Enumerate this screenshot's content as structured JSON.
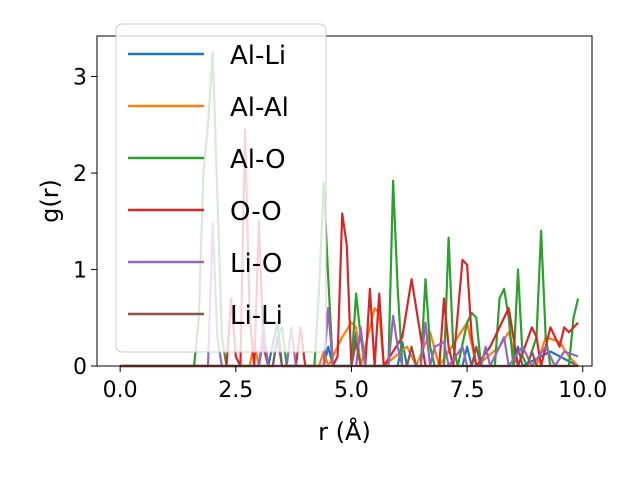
{
  "chart_data": {
    "type": "line",
    "title": "",
    "xlabel": "r (Å)",
    "ylabel": "g(r)",
    "xlim": [
      -0.5,
      10.2
    ],
    "ylim": [
      0,
      3.42
    ],
    "xticks": [
      "0.0",
      "2.5",
      "5.0",
      "7.5",
      "10.0"
    ],
    "yticks": [
      "0",
      "1",
      "2",
      "3"
    ],
    "legend_position": "upper-left",
    "grid": false,
    "series": [
      {
        "name": "Al-Li",
        "color": "#1f77b4",
        "points": [
          [
            0,
            0
          ],
          [
            3.0,
            0
          ],
          [
            3.1,
            0.3
          ],
          [
            3.2,
            0
          ],
          [
            3.4,
            0.45
          ],
          [
            3.5,
            0
          ],
          [
            4.4,
            0
          ],
          [
            4.5,
            0.2
          ],
          [
            4.6,
            0
          ],
          [
            5.0,
            0
          ],
          [
            5.1,
            0.35
          ],
          [
            5.2,
            0
          ],
          [
            6.0,
            0
          ],
          [
            6.1,
            0.25
          ],
          [
            6.2,
            0
          ],
          [
            7.4,
            0
          ],
          [
            7.5,
            0.2
          ],
          [
            7.6,
            0
          ],
          [
            8.5,
            0
          ],
          [
            8.6,
            0.2
          ],
          [
            8.7,
            0
          ],
          [
            9.3,
            0.15
          ],
          [
            9.9,
            0
          ]
        ]
      },
      {
        "name": "Al-Al",
        "color": "#ff7f0e",
        "points": [
          [
            0,
            0
          ],
          [
            2.8,
            0
          ],
          [
            2.9,
            0.25
          ],
          [
            3.0,
            0
          ],
          [
            4.3,
            0
          ],
          [
            4.4,
            0.15
          ],
          [
            4.5,
            0
          ],
          [
            4.8,
            0.3
          ],
          [
            5.0,
            0.45
          ],
          [
            5.1,
            0.4
          ],
          [
            5.2,
            0
          ],
          [
            5.5,
            0.6
          ],
          [
            5.6,
            0.55
          ],
          [
            5.7,
            0
          ],
          [
            6.2,
            0.2
          ],
          [
            6.4,
            0
          ],
          [
            6.7,
            0.35
          ],
          [
            6.9,
            0
          ],
          [
            7.5,
            0.45
          ],
          [
            7.7,
            0
          ],
          [
            8.2,
            0.2
          ],
          [
            8.4,
            0.35
          ],
          [
            8.6,
            0
          ],
          [
            9.0,
            0
          ],
          [
            9.2,
            0.3
          ],
          [
            9.5,
            0.25
          ],
          [
            9.7,
            0.1
          ],
          [
            9.9,
            0
          ]
        ]
      },
      {
        "name": "Al-O",
        "color": "#2ca02c",
        "points": [
          [
            0,
            0
          ],
          [
            1.6,
            0
          ],
          [
            1.7,
            0.5
          ],
          [
            1.8,
            2.0
          ],
          [
            1.9,
            2.5
          ],
          [
            2.0,
            3.25
          ],
          [
            2.1,
            1.8
          ],
          [
            2.2,
            0.3
          ],
          [
            2.3,
            0
          ],
          [
            3.3,
            0
          ],
          [
            3.4,
            0.3
          ],
          [
            3.5,
            0.4
          ],
          [
            3.6,
            0
          ],
          [
            4.2,
            0
          ],
          [
            4.3,
            0.8
          ],
          [
            4.4,
            1.9
          ],
          [
            4.5,
            0.9
          ],
          [
            4.6,
            0
          ],
          [
            5.0,
            0
          ],
          [
            5.1,
            0.75
          ],
          [
            5.2,
            0.3
          ],
          [
            5.3,
            0
          ],
          [
            5.8,
            0
          ],
          [
            5.9,
            1.92
          ],
          [
            6.0,
            0.8
          ],
          [
            6.1,
            0
          ],
          [
            6.5,
            0
          ],
          [
            6.6,
            0.9
          ],
          [
            6.7,
            0.2
          ],
          [
            6.8,
            0
          ],
          [
            7.0,
            0
          ],
          [
            7.1,
            1.33
          ],
          [
            7.2,
            0.2
          ],
          [
            7.3,
            0
          ],
          [
            7.5,
            0.45
          ],
          [
            7.6,
            0.55
          ],
          [
            7.7,
            0.5
          ],
          [
            7.8,
            0
          ],
          [
            8.1,
            0
          ],
          [
            8.2,
            0.7
          ],
          [
            8.3,
            0.8
          ],
          [
            8.4,
            0.5
          ],
          [
            8.5,
            0
          ],
          [
            8.6,
            1.0
          ],
          [
            8.7,
            0.1
          ],
          [
            8.8,
            0
          ],
          [
            9.0,
            0.3
          ],
          [
            9.1,
            1.4
          ],
          [
            9.2,
            0.3
          ],
          [
            9.3,
            0
          ],
          [
            9.7,
            0
          ],
          [
            9.8,
            0.5
          ],
          [
            9.9,
            0.7
          ]
        ]
      },
      {
        "name": "O-O",
        "color": "#d62728",
        "points": [
          [
            0,
            0
          ],
          [
            2.3,
            0
          ],
          [
            2.4,
            0.7
          ],
          [
            2.5,
            0.1
          ],
          [
            2.6,
            0
          ],
          [
            2.7,
            2.45
          ],
          [
            2.8,
            0.5
          ],
          [
            2.9,
            0
          ],
          [
            3.0,
            1.5
          ],
          [
            3.1,
            0.2
          ],
          [
            3.2,
            0
          ],
          [
            3.8,
            0
          ],
          [
            3.9,
            0.4
          ],
          [
            4.0,
            0
          ],
          [
            4.4,
            0
          ],
          [
            4.5,
            0.6
          ],
          [
            4.6,
            0
          ],
          [
            4.7,
            0.1
          ],
          [
            4.8,
            1.58
          ],
          [
            4.9,
            1.25
          ],
          [
            5.0,
            0
          ],
          [
            5.3,
            0
          ],
          [
            5.4,
            0.8
          ],
          [
            5.5,
            0
          ],
          [
            5.6,
            0.75
          ],
          [
            5.7,
            0
          ],
          [
            6.1,
            0.3
          ],
          [
            6.3,
            0.9
          ],
          [
            6.5,
            0.3
          ],
          [
            6.6,
            0
          ],
          [
            6.9,
            0
          ],
          [
            7.0,
            0.7
          ],
          [
            7.1,
            0.2
          ],
          [
            7.2,
            0
          ],
          [
            7.4,
            1.1
          ],
          [
            7.5,
            1.05
          ],
          [
            7.6,
            0.3
          ],
          [
            7.7,
            0
          ],
          [
            8.0,
            0.2
          ],
          [
            8.2,
            0.4
          ],
          [
            8.4,
            0.6
          ],
          [
            8.5,
            0.3
          ],
          [
            8.6,
            0
          ],
          [
            8.9,
            0.4
          ],
          [
            9.0,
            0.3
          ],
          [
            9.1,
            0
          ],
          [
            9.3,
            0.4
          ],
          [
            9.4,
            0.3
          ],
          [
            9.5,
            0.2
          ],
          [
            9.6,
            0.4
          ],
          [
            9.7,
            0.35
          ],
          [
            9.9,
            0.45
          ]
        ]
      },
      {
        "name": "Li-O",
        "color": "#9467bd",
        "points": [
          [
            0,
            0
          ],
          [
            1.9,
            0
          ],
          [
            2.0,
            1.48
          ],
          [
            2.1,
            0.3
          ],
          [
            2.2,
            0
          ],
          [
            3.0,
            0
          ],
          [
            3.1,
            0.4
          ],
          [
            3.2,
            0
          ],
          [
            3.6,
            0
          ],
          [
            3.7,
            0.4
          ],
          [
            3.8,
            0
          ],
          [
            4.4,
            0
          ],
          [
            4.5,
            0.6
          ],
          [
            4.6,
            0
          ],
          [
            5.1,
            0
          ],
          [
            5.2,
            0.4
          ],
          [
            5.3,
            0
          ],
          [
            5.8,
            0
          ],
          [
            5.9,
            0.52
          ],
          [
            6.0,
            0.2
          ],
          [
            6.1,
            0
          ],
          [
            6.5,
            0
          ],
          [
            6.6,
            0.45
          ],
          [
            6.7,
            0
          ],
          [
            6.8,
            0.2
          ],
          [
            7.0,
            0.25
          ],
          [
            7.1,
            0
          ],
          [
            7.4,
            0.2
          ],
          [
            7.5,
            0
          ],
          [
            7.8,
            0
          ],
          [
            7.9,
            0.2
          ],
          [
            8.0,
            0
          ],
          [
            8.3,
            0.3
          ],
          [
            8.4,
            0
          ],
          [
            8.7,
            0.2
          ],
          [
            8.9,
            0
          ],
          [
            9.2,
            0.2
          ],
          [
            9.4,
            0
          ],
          [
            9.6,
            0.15
          ],
          [
            9.9,
            0.1
          ]
        ]
      },
      {
        "name": "Li-Li",
        "color": "#8c564b",
        "points": [
          [
            0,
            0
          ],
          [
            3.3,
            0
          ],
          [
            3.4,
            0.3
          ],
          [
            3.5,
            0
          ],
          [
            5.0,
            0
          ],
          [
            5.1,
            0.25
          ],
          [
            5.2,
            0
          ],
          [
            6.2,
            0
          ],
          [
            6.3,
            0.2
          ],
          [
            6.4,
            0
          ],
          [
            7.6,
            0
          ],
          [
            7.7,
            0.2
          ],
          [
            7.8,
            0
          ],
          [
            8.8,
            0
          ],
          [
            8.9,
            0.15
          ],
          [
            9.0,
            0
          ],
          [
            9.9,
            0
          ]
        ]
      }
    ]
  }
}
